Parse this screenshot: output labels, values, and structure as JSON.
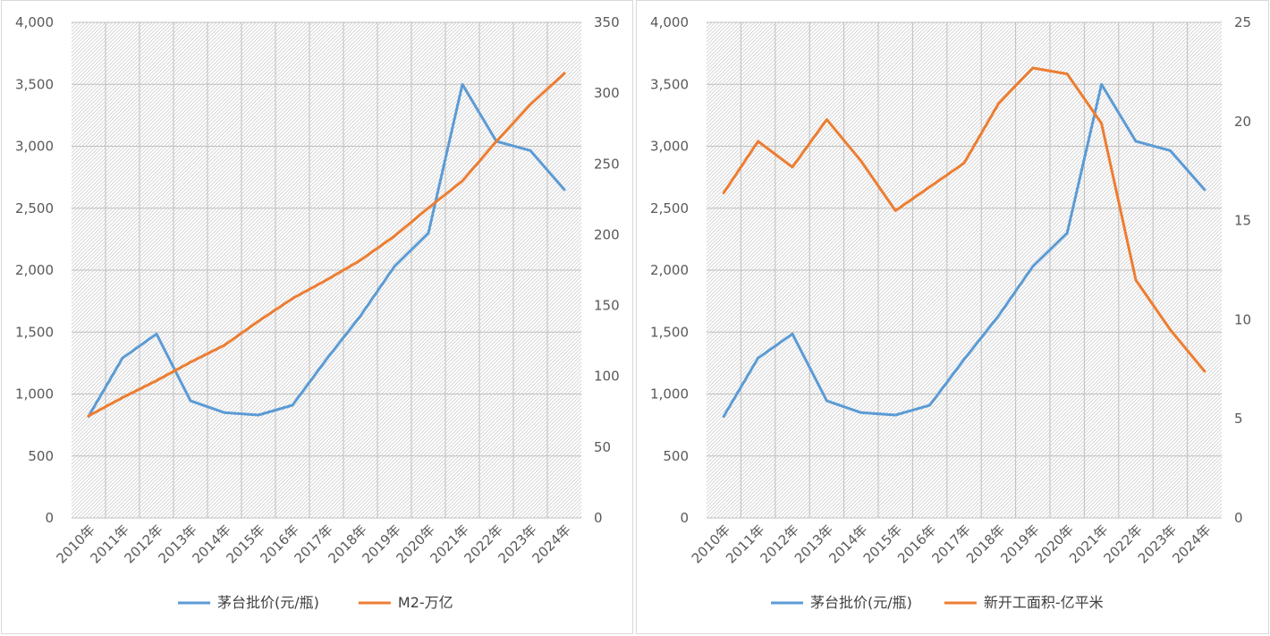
{
  "colors": {
    "blue": "#5b9bd5",
    "orange": "#ed7d31",
    "grid": "#bfbfbf"
  },
  "chart_data": [
    {
      "type": "line",
      "title": "",
      "categories": [
        "2010年",
        "2011年",
        "2012年",
        "2013年",
        "2014年",
        "2015年",
        "2016年",
        "2017年",
        "2018年",
        "2019年",
        "2020年",
        "2021年",
        "2022年",
        "2023年",
        "2024年"
      ],
      "y_ticks": [
        "0",
        "500",
        "1,000",
        "1,500",
        "2,000",
        "2,500",
        "3,000",
        "3,500",
        "4,000"
      ],
      "y2_ticks": [
        "0",
        "50",
        "100",
        "150",
        "200",
        "250",
        "300",
        "350"
      ],
      "ylim": [
        0,
        4000
      ],
      "y2lim": [
        0,
        350
      ],
      "legend_position": "bottom",
      "grid": true,
      "series": [
        {
          "name": "茅台批价(元/瓶)",
          "axis": "left",
          "color": "#5b9bd5",
          "values": [
            820,
            1290,
            1485,
            945,
            850,
            830,
            910,
            1280,
            1630,
            2030,
            2300,
            3500,
            3040,
            2965,
            2650
          ]
        },
        {
          "name": "M2-万亿",
          "axis": "right",
          "color": "#ed7d31",
          "values": [
            72,
            85,
            97,
            110,
            122,
            139,
            155,
            168,
            182,
            199,
            219,
            238,
            266,
            292,
            314
          ]
        }
      ]
    },
    {
      "type": "line",
      "title": "",
      "categories": [
        "2010年",
        "2011年",
        "2012年",
        "2013年",
        "2014年",
        "2015年",
        "2016年",
        "2017年",
        "2018年",
        "2019年",
        "2020年",
        "2021年",
        "2022年",
        "2023年",
        "2024年"
      ],
      "y_ticks": [
        "0",
        "500",
        "1,000",
        "1,500",
        "2,000",
        "2,500",
        "3,000",
        "3,500",
        "4,000"
      ],
      "y2_ticks": [
        "0",
        "5",
        "10",
        "15",
        "20",
        "25"
      ],
      "ylim": [
        0,
        4000
      ],
      "y2lim": [
        0,
        25
      ],
      "legend_position": "bottom",
      "grid": true,
      "series": [
        {
          "name": "茅台批价(元/瓶)",
          "axis": "left",
          "color": "#5b9bd5",
          "values": [
            820,
            1290,
            1485,
            945,
            850,
            830,
            910,
            1280,
            1630,
            2030,
            2300,
            3500,
            3040,
            2965,
            2650
          ]
        },
        {
          "name": "新开工面积-亿平米",
          "axis": "right",
          "color": "#ed7d31",
          "values": [
            16.4,
            19.0,
            17.7,
            20.1,
            18.0,
            15.5,
            16.7,
            17.9,
            20.9,
            22.7,
            22.4,
            19.9,
            12.0,
            9.5,
            7.4
          ]
        }
      ]
    }
  ]
}
